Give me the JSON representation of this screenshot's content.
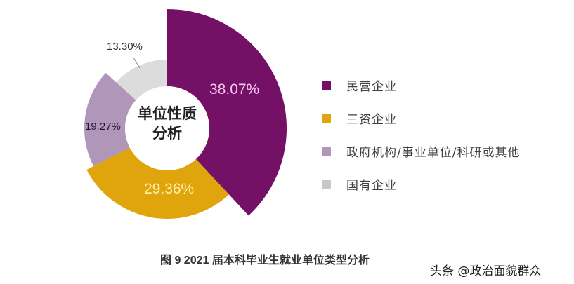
{
  "chart_data": {
    "type": "pie",
    "variant": "rose-donut",
    "title": "图 9  2021 届本科毕业生就业单位类型分析",
    "center_label": [
      "单位性质",
      "分析"
    ],
    "categories": [
      "民营企业",
      "三资企业",
      "政府机构/事业单位/科研或其他",
      "国有企业"
    ],
    "values": [
      38.07,
      29.36,
      19.27,
      13.3
    ],
    "value_labels": [
      "38.07%",
      "29.36%",
      "19.27%",
      "13.30%"
    ],
    "colors": [
      "#741066",
      "#e0a50c",
      "#b096b8",
      "#dcdcdc"
    ],
    "label_colors": [
      "#f4c8ee",
      "#fff2a8",
      "#2a1030",
      "#333333"
    ],
    "legend_position": "right"
  },
  "legend": {
    "items": [
      {
        "label": "民营企业",
        "color": "#741066"
      },
      {
        "label": "三资企业",
        "color": "#e0a50c"
      },
      {
        "label": "政府机构/事业单位/科研或其他",
        "color": "#b096b8"
      },
      {
        "label": "国有企业",
        "color": "#c8c8c8"
      }
    ]
  },
  "caption": "图 9  2021 届本科毕业生就业单位类型分析",
  "watermark": "头条 @政治面貌群众"
}
